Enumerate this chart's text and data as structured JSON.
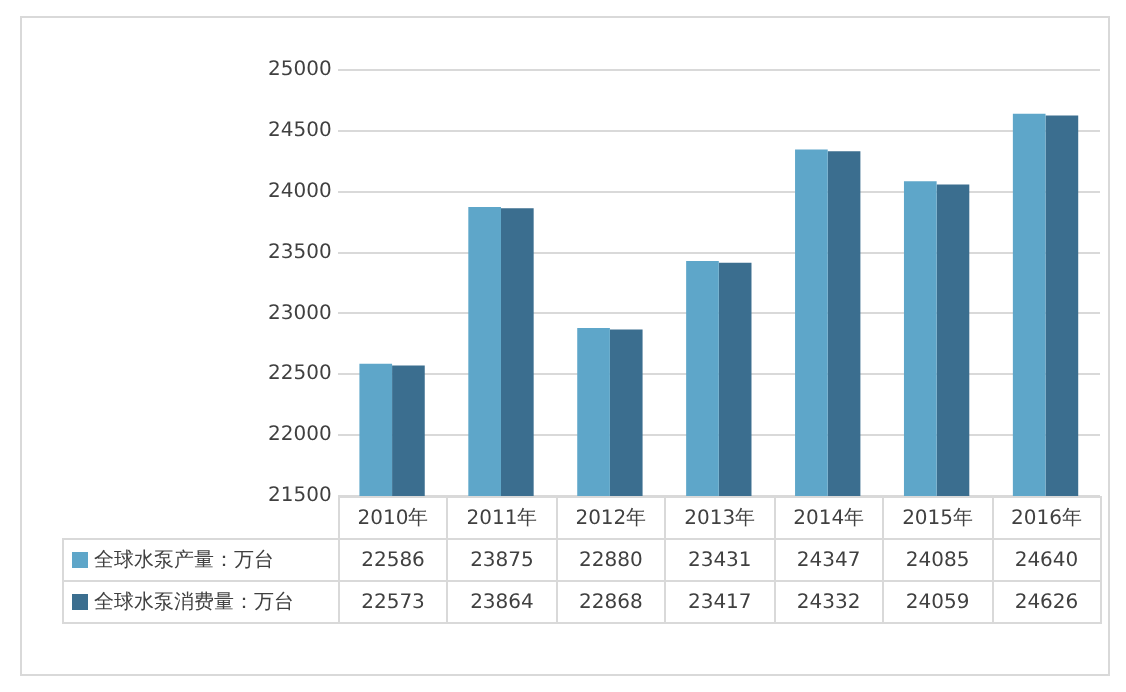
{
  "chart_data": {
    "type": "bar",
    "categories": [
      "2010年",
      "2011年",
      "2012年",
      "2013年",
      "2014年",
      "2015年",
      "2016年"
    ],
    "series": [
      {
        "name": "全球水泵产量：万台",
        "color": "#5ea6c9",
        "values": [
          22586,
          23875,
          22880,
          23431,
          24347,
          24085,
          24640
        ]
      },
      {
        "name": "全球水泵消费量：万台",
        "color": "#3b6e8f",
        "values": [
          22573,
          23864,
          22868,
          23417,
          24332,
          24059,
          24626
        ]
      }
    ],
    "ylim": [
      21500,
      25000
    ],
    "yticks": [
      21500,
      22000,
      22500,
      23000,
      23500,
      24000,
      24500,
      25000
    ],
    "grid": "y",
    "legend": "bottom",
    "data_labels": true
  }
}
